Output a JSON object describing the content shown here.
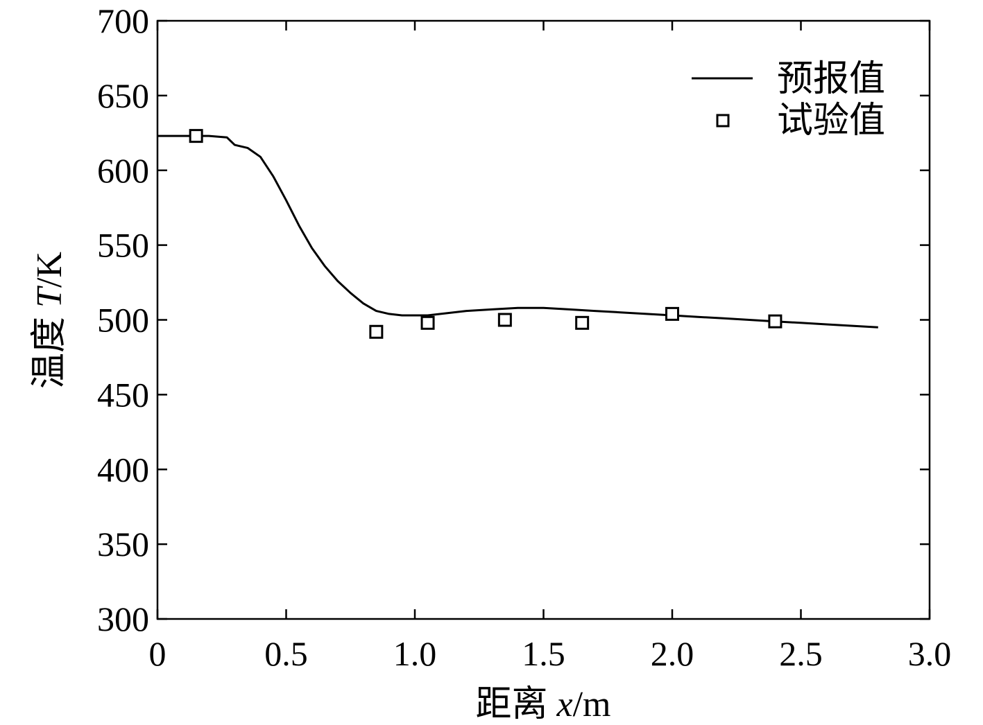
{
  "chart_data": {
    "type": "line",
    "xlabel_prefix": "距离 ",
    "xlabel_var": "x",
    "xlabel_unit": "/m",
    "ylabel_prefix": "温度 ",
    "ylabel_var": "T",
    "ylabel_unit": "/K",
    "xlim": [
      0,
      3.0
    ],
    "ylim": [
      300,
      700
    ],
    "xticks": [
      0,
      0.5,
      1.0,
      1.5,
      2.0,
      2.5,
      3.0
    ],
    "xtick_labels": [
      "0",
      "0.5",
      "1.0",
      "1.5",
      "2.0",
      "2.5",
      "3.0"
    ],
    "yticks": [
      300,
      350,
      400,
      450,
      500,
      550,
      600,
      650,
      700
    ],
    "ytick_labels": [
      "300",
      "350",
      "400",
      "450",
      "500",
      "550",
      "600",
      "650",
      "700"
    ],
    "grid": false,
    "legend_position": "top-right",
    "series": [
      {
        "name": "预报值",
        "style": "line",
        "x": [
          0,
          0.1,
          0.2,
          0.27,
          0.3,
          0.35,
          0.4,
          0.45,
          0.5,
          0.55,
          0.6,
          0.65,
          0.7,
          0.75,
          0.8,
          0.85,
          0.9,
          0.95,
          1.0,
          1.05,
          1.1,
          1.2,
          1.3,
          1.4,
          1.5,
          1.6,
          1.7,
          1.8,
          1.9,
          2.0,
          2.1,
          2.2,
          2.3,
          2.4,
          2.5,
          2.6,
          2.7,
          2.8
        ],
        "y": [
          623,
          623,
          623,
          622,
          617,
          615,
          609,
          596,
          580,
          563,
          548,
          536,
          526,
          518,
          511,
          506,
          504,
          503,
          503,
          503,
          504,
          506,
          507,
          508,
          508,
          507,
          506,
          505,
          504,
          503,
          502,
          501,
          500,
          499,
          498,
          497,
          496,
          495
        ]
      },
      {
        "name": "试验值",
        "style": "marker-square",
        "x": [
          0.15,
          0.85,
          1.05,
          1.35,
          1.65,
          2.0,
          2.4
        ],
        "y": [
          623,
          492,
          498,
          500,
          498,
          504,
          499
        ]
      }
    ]
  }
}
